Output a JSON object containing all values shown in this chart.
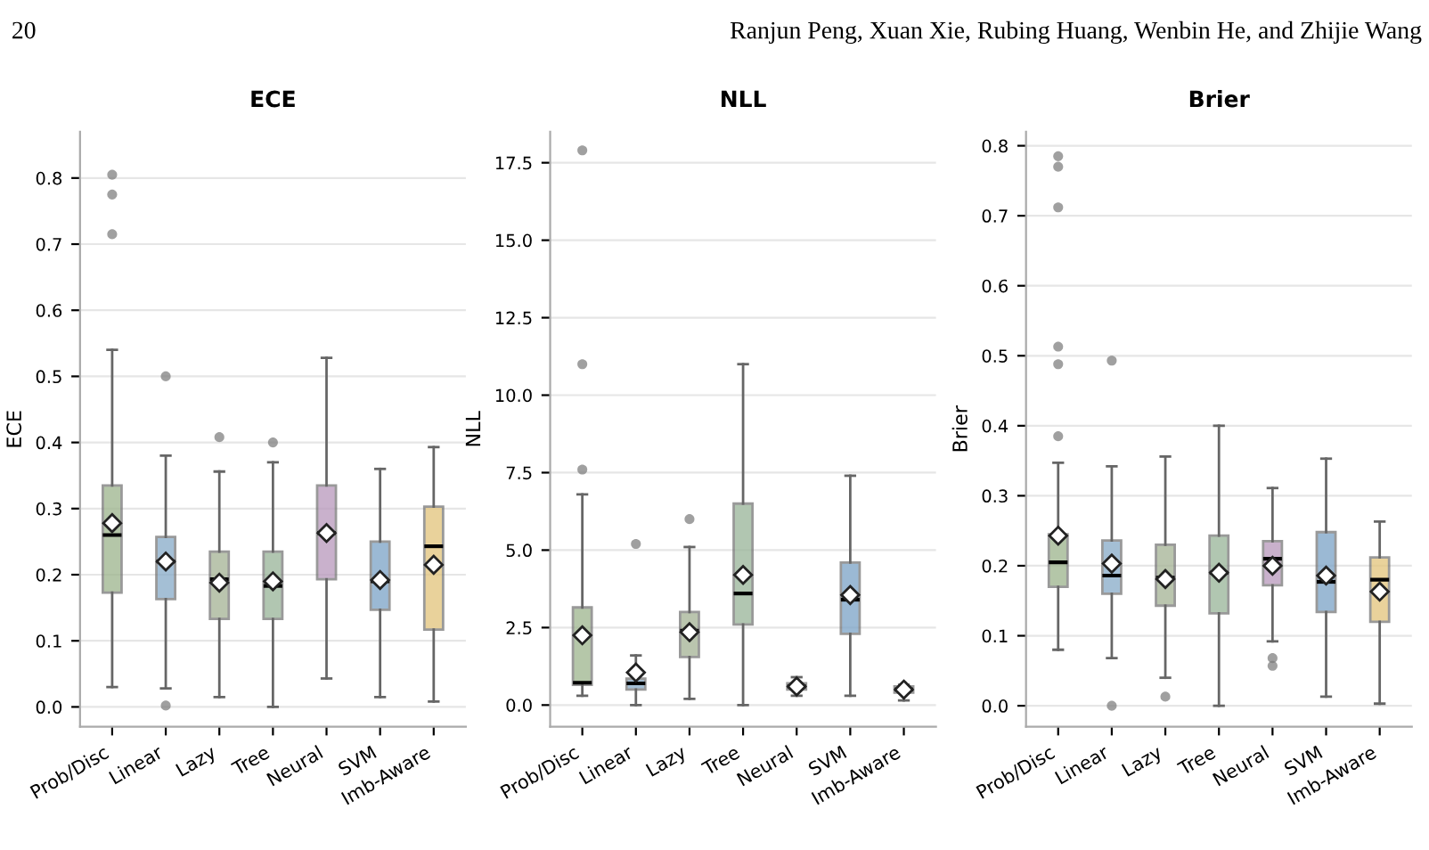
{
  "chart_data": [
    {
      "type": "box",
      "title": "ECE",
      "ylabel": "ECE",
      "annotations": [
        "20",
        "Ranjun Peng, Xuan Xie, Rubing Huang, Wenbin He, and Zhijie Wang"
      ],
      "categories": [
        "Prob/Disc",
        "Linear",
        "Lazy",
        "Tree",
        "Neural",
        "SVM",
        "Imb-Aware"
      ],
      "colors": [
        "#9cb48c",
        "#86aac8",
        "#a4b294",
        "#98b498",
        "#b898bc",
        "#7aa2c6",
        "#e2c47a"
      ],
      "marker": "diamond",
      "grid": "y",
      "ylim": [
        -0.03,
        0.87
      ],
      "yticks": [
        {
          "value": 0,
          "label": "0.0"
        },
        0.1,
        0.2,
        0.3,
        0.4,
        0.5,
        0.6,
        0.7,
        0.8
      ],
      "boxes": [
        {
          "low": 0.03,
          "q1": 0.173,
          "median": 0.26,
          "q3": 0.335,
          "high": 0.54,
          "mean": 0.278,
          "outliers": [
            0.805,
            0.775,
            0.715
          ]
        },
        {
          "low": 0.028,
          "q1": 0.163,
          "median": 0.22,
          "q3": 0.257,
          "high": 0.38,
          "mean": 0.22,
          "outliers": [
            0.5,
            0.002
          ]
        },
        {
          "low": 0.015,
          "q1": 0.133,
          "median": 0.193,
          "q3": 0.235,
          "high": 0.356,
          "mean": 0.188,
          "outliers": [
            0.408
          ]
        },
        {
          "low": 0.0,
          "q1": 0.133,
          "median": 0.183,
          "q3": 0.235,
          "high": 0.37,
          "mean": 0.19,
          "outliers": [
            0.4
          ]
        },
        {
          "low": 0.043,
          "q1": 0.193,
          "median": 0.263,
          "q3": 0.335,
          "high": 0.528,
          "mean": 0.263
        },
        {
          "low": 0.015,
          "q1": 0.147,
          "median": 0.19,
          "q3": 0.25,
          "high": 0.36,
          "mean": 0.192
        },
        {
          "low": 0.008,
          "q1": 0.117,
          "median": 0.243,
          "q3": 0.303,
          "high": 0.393,
          "mean": 0.215
        }
      ]
    },
    {
      "type": "box",
      "title": "NLL",
      "ylabel": "NLL",
      "categories": [
        "Prob/Disc",
        "Linear",
        "Lazy",
        "Tree",
        "Neural",
        "SVM",
        "Imb-Aware"
      ],
      "colors": [
        "#9cb48c",
        "#86aac8",
        "#a4b294",
        "#98b498",
        "#b898bc",
        "#7aa2c6",
        "#e2c47a"
      ],
      "marker": "diamond",
      "grid": "y",
      "ylim": [
        -0.7,
        18.5
      ],
      "yticks": [
        {
          "value": 0,
          "label": "0.0"
        },
        2.5,
        {
          "value": 5,
          "label": "5.0"
        },
        7.5,
        {
          "value": 10,
          "label": "10.0"
        },
        12.5,
        {
          "value": 15,
          "label": "15.0"
        },
        17.5
      ],
      "boxes": [
        {
          "low": 0.3,
          "q1": 0.65,
          "median": 0.72,
          "q3": 3.15,
          "high": 6.8,
          "mean": 2.25,
          "outliers": [
            17.9,
            11.0,
            7.6
          ]
        },
        {
          "low": 0.0,
          "q1": 0.5,
          "median": 0.7,
          "q3": 0.85,
          "high": 1.6,
          "mean": 1.05,
          "outliers": [
            5.2
          ]
        },
        {
          "low": 0.2,
          "q1": 1.55,
          "median": 2.4,
          "q3": 3.0,
          "high": 5.1,
          "mean": 2.35,
          "outliers": [
            6.0
          ]
        },
        {
          "low": 0.0,
          "q1": 2.6,
          "median": 3.6,
          "q3": 6.5,
          "high": 11.0,
          "mean": 4.2
        },
        {
          "low": 0.3,
          "q1": 0.5,
          "median": 0.6,
          "q3": 0.7,
          "high": 0.9,
          "mean": 0.6
        },
        {
          "low": 0.3,
          "q1": 2.3,
          "median": 3.4,
          "q3": 4.6,
          "high": 7.4,
          "mean": 3.55
        },
        {
          "low": 0.15,
          "q1": 0.4,
          "median": 0.5,
          "q3": 0.6,
          "high": 0.65,
          "mean": 0.5
        }
      ]
    },
    {
      "type": "box",
      "title": "Brier",
      "ylabel": "Brier",
      "categories": [
        "Prob/Disc",
        "Linear",
        "Lazy",
        "Tree",
        "Neural",
        "SVM",
        "Imb-Aware"
      ],
      "colors": [
        "#9cb48c",
        "#86aac8",
        "#a4b294",
        "#98b498",
        "#b898bc",
        "#7aa2c6",
        "#e2c47a"
      ],
      "marker": "diamond",
      "grid": "y",
      "ylim": [
        -0.03,
        0.82
      ],
      "yticks": [
        {
          "value": 0,
          "label": "0.0"
        },
        0.1,
        0.2,
        0.3,
        0.4,
        0.5,
        0.6,
        0.7,
        0.8
      ],
      "boxes": [
        {
          "low": 0.08,
          "q1": 0.17,
          "median": 0.205,
          "q3": 0.245,
          "high": 0.347,
          "mean": 0.243,
          "outliers": [
            0.785,
            0.77,
            0.712,
            0.513,
            0.488,
            0.385
          ]
        },
        {
          "low": 0.068,
          "q1": 0.16,
          "median": 0.186,
          "q3": 0.236,
          "high": 0.342,
          "mean": 0.203,
          "outliers": [
            0.493,
            0.0
          ]
        },
        {
          "low": 0.04,
          "q1": 0.143,
          "median": 0.183,
          "q3": 0.23,
          "high": 0.356,
          "mean": 0.181,
          "outliers": [
            0.013
          ]
        },
        {
          "low": 0.0,
          "q1": 0.132,
          "median": 0.19,
          "q3": 0.243,
          "high": 0.4,
          "mean": 0.19
        },
        {
          "low": 0.092,
          "q1": 0.172,
          "median": 0.21,
          "q3": 0.235,
          "high": 0.311,
          "mean": 0.2,
          "outliers": [
            0.068,
            0.057
          ]
        },
        {
          "low": 0.013,
          "q1": 0.134,
          "median": 0.177,
          "q3": 0.248,
          "high": 0.353,
          "mean": 0.186
        },
        {
          "low": 0.003,
          "q1": 0.12,
          "median": 0.18,
          "q3": 0.212,
          "high": 0.263,
          "mean": 0.163
        }
      ]
    }
  ]
}
